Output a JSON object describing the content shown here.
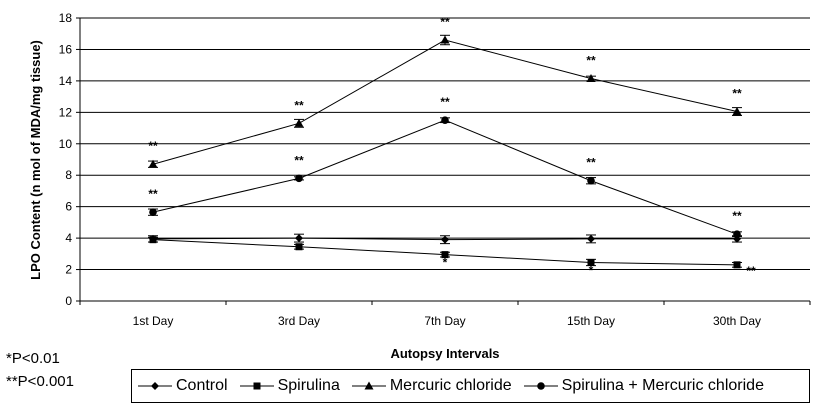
{
  "chart_data": {
    "type": "line",
    "ylabel": "LPO Content (n mol of MDA/mg tissue)",
    "xlabel": "Autopsy Intervals",
    "ylim": [
      0,
      18
    ],
    "yticks": [
      0,
      2,
      4,
      6,
      8,
      10,
      12,
      14,
      16,
      18
    ],
    "grid": true,
    "categories": [
      "1st Day",
      "3rd Day",
      "7th Day",
      "15th Day",
      "30th Day"
    ],
    "series": [
      {
        "name": "Control",
        "marker": "diamond",
        "values": [
          3.95,
          4.0,
          3.9,
          3.95,
          3.95
        ],
        "errors": [
          0.2,
          0.25,
          0.25,
          0.25,
          0.2
        ],
        "sig": [
          "",
          "",
          "",
          "",
          ""
        ]
      },
      {
        "name": "Spirulina",
        "marker": "square",
        "values": [
          3.9,
          3.45,
          2.95,
          2.45,
          2.3
        ],
        "errors": [
          0.15,
          0.15,
          0.15,
          0.2,
          0.15
        ],
        "sig": [
          "",
          "",
          "*",
          "*",
          "**"
        ]
      },
      {
        "name": "Mercuric chloride",
        "marker": "triangle",
        "values": [
          8.7,
          11.3,
          16.6,
          14.15,
          12.05
        ],
        "errors": [
          0.2,
          0.25,
          0.3,
          0.15,
          0.25
        ],
        "sig": [
          "**",
          "**",
          "**",
          "**",
          "**"
        ]
      },
      {
        "name": "Spirulina + Mercuric chloride",
        "marker": "circle",
        "values": [
          5.65,
          7.8,
          11.5,
          7.65,
          4.25
        ],
        "errors": [
          0.2,
          0.1,
          0.15,
          0.2,
          0.15
        ],
        "sig": [
          "**",
          "**",
          "**",
          "**",
          "**"
        ]
      }
    ]
  },
  "notes": [
    "*P<0.01",
    "**P<0.001"
  ]
}
